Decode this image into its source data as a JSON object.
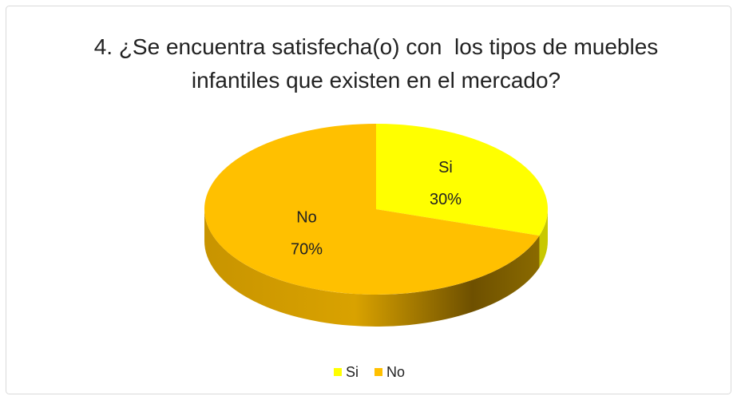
{
  "chart_data": {
    "type": "pie",
    "title": "4. ¿Se encuentra satisfecha(o) con  los tipos de muebles infantiles que existen en el mercado?",
    "categories": [
      "Si",
      "No"
    ],
    "values": [
      30,
      70
    ],
    "value_labels": [
      "30%",
      "70%"
    ],
    "colors": [
      "#ffff00",
      "#ffc000"
    ],
    "legend": "bottom"
  }
}
